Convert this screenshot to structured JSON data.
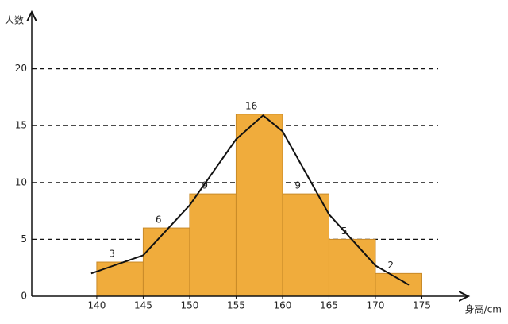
{
  "chart_data": {
    "type": "histogram",
    "y_label": "人数",
    "x_label": "身高/cm",
    "bins": [
      140,
      145,
      150,
      155,
      160,
      165,
      170,
      175
    ],
    "values": [
      3,
      6,
      9,
      16,
      9,
      5,
      2
    ],
    "color": "#f0ac3c",
    "curve": {
      "color": "#111111",
      "x": [
        139.4,
        145,
        150,
        155,
        157.9,
        160,
        165,
        170,
        173.6
      ],
      "values": [
        2.0,
        3.6,
        8.0,
        13.8,
        15.9,
        14.5,
        7.2,
        2.7,
        1.0
      ]
    },
    "xlim": [
      133,
      180
    ],
    "ylim": [
      0,
      25
    ],
    "xticks": [
      140,
      145,
      150,
      155,
      160,
      165,
      170,
      175
    ],
    "yticks": [
      0,
      5,
      10,
      15,
      20
    ],
    "grid": true
  }
}
